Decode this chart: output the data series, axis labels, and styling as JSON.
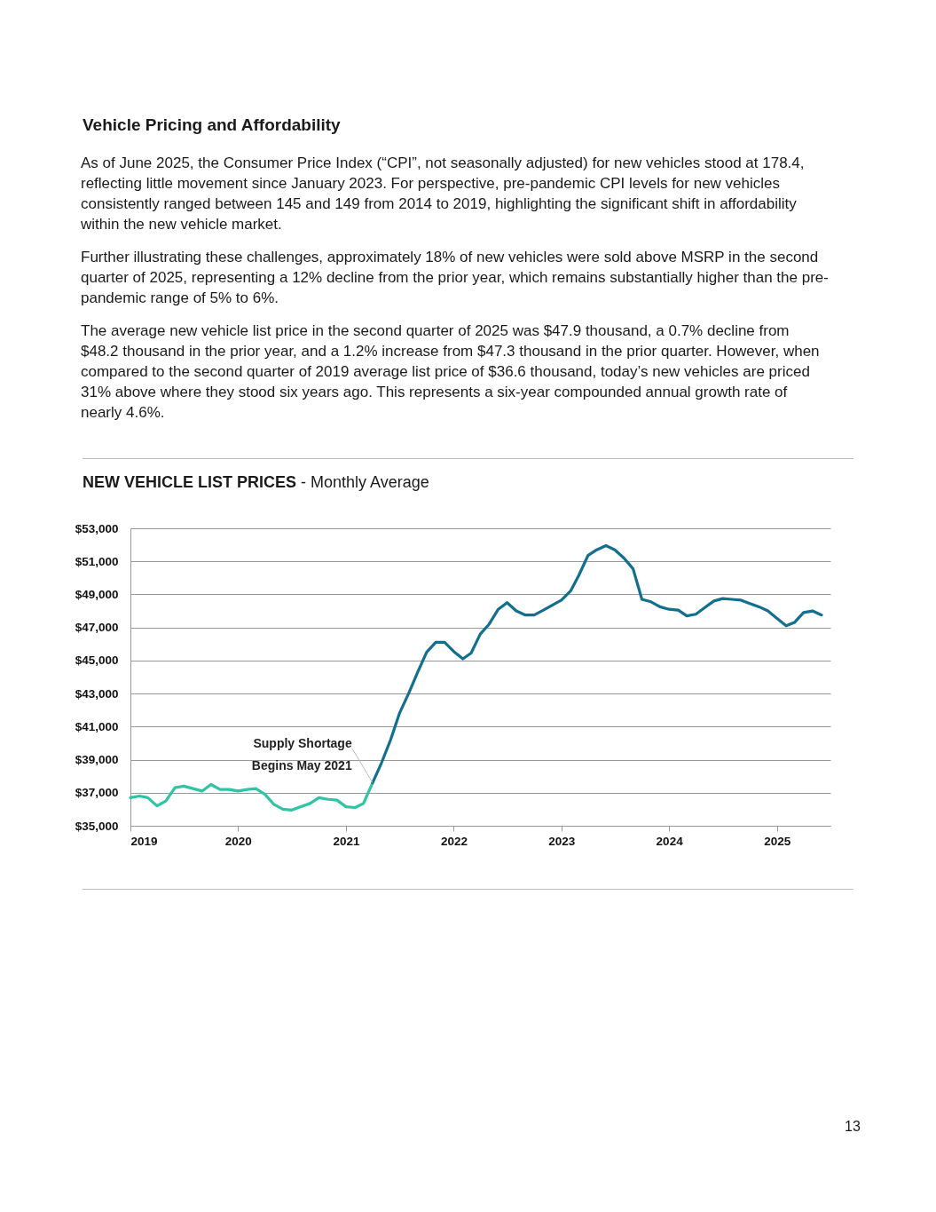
{
  "chart_data": {
    "type": "line",
    "title": "NEW VEHICLE LIST PRICES",
    "subtitle": "- Monthly Average",
    "annotations": [
      "Vehicle Pricing and Affordability",
      "As of June 2025, the Consumer Price Index (“CPI”, not seasonally adjusted) for new vehicles stood at 178.4, reflecting little movement since January 2023. For perspective, pre-pandemic CPI levels for new vehicles consistently ranged between 145 and 149 from 2014 to 2019, highlighting the significant shift in affordability within the new vehicle market.",
      "Further illustrating these challenges, approximately 18% of new vehicles were sold above MSRP in the second quarter of 2025, representing a 12% decline from the prior year, which remains substantially higher than the pre-pandemic range of 5% to 6%.",
      "The average new vehicle list price in the second quarter of 2025 was $47.9 thousand, a 0.7% decline from $48.2 thousand in the prior year, and a 1.2% increase from $47.3 thousand in the prior quarter. However, when compared to the second quarter of 2019 average list price of $36.6 thousand, today’s new vehicles are priced 31% above where they stood six years ago. This represents a six-year compounded annual growth rate of nearly 4.6%.",
      {
        "text": "Supply Shortage Begins May 2021",
        "x": "2021-04",
        "y": 37600
      },
      "13"
    ],
    "series": [
      {
        "color": "#2ec4a4",
        "x": [
          "2019-01",
          "2019-02",
          "2019-03",
          "2019-04",
          "2019-05",
          "2019-06",
          "2019-07",
          "2019-08",
          "2019-09",
          "2019-10",
          "2019-11",
          "2019-12",
          "2020-01",
          "2020-02",
          "2020-03",
          "2020-04",
          "2020-05",
          "2020-06",
          "2020-07",
          "2020-08",
          "2020-09",
          "2020-10",
          "2020-11",
          "2020-12",
          "2021-01",
          "2021-02",
          "2021-03",
          "2021-04"
        ],
        "values": [
          36700,
          36800,
          36700,
          36200,
          36500,
          37300,
          37400,
          37250,
          37100,
          37500,
          37200,
          37200,
          37100,
          37200,
          37250,
          36900,
          36300,
          36000,
          35950,
          36150,
          36350,
          36700,
          36600,
          36550,
          36150,
          36100,
          36350,
          37600
        ]
      },
      {
        "color": "#136f8e",
        "x": [
          "2021-04",
          "2021-05",
          "2021-06",
          "2021-07",
          "2021-08",
          "2021-09",
          "2021-10",
          "2021-11",
          "2021-12",
          "2022-01",
          "2022-02",
          "2022-03",
          "2022-04",
          "2022-05",
          "2022-06",
          "2022-07",
          "2022-08",
          "2022-09",
          "2022-10",
          "2022-11",
          "2022-12",
          "2023-01",
          "2023-02",
          "2023-03",
          "2023-04",
          "2023-05",
          "2023-06",
          "2023-07",
          "2023-08",
          "2023-09",
          "2023-10",
          "2023-11",
          "2023-12",
          "2024-01",
          "2024-02",
          "2024-03",
          "2024-04",
          "2024-05",
          "2024-06",
          "2024-07",
          "2024-08",
          "2024-09",
          "2024-10",
          "2024-11",
          "2024-12",
          "2025-01",
          "2025-02",
          "2025-03",
          "2025-04",
          "2025-05",
          "2025-06"
        ],
        "values": [
          37600,
          38800,
          40200,
          41800,
          43000,
          44300,
          45500,
          46100,
          46100,
          45550,
          45100,
          45450,
          46600,
          47200,
          48100,
          48500,
          48000,
          47750,
          47750,
          48050,
          48350,
          48650,
          49200,
          50150,
          51350,
          51700,
          51950,
          51700,
          51200,
          50550,
          48700,
          48550,
          48250,
          48100,
          48050,
          47700,
          47800,
          48200,
          48600,
          48750,
          48700,
          48650,
          48450,
          48250,
          48000,
          47550,
          47100,
          47300,
          47900,
          48000,
          47750
        ]
      }
    ],
    "xlim": [
      "2019",
      "2025-07"
    ],
    "xticks": [
      "2019",
      "2020",
      "2021",
      "2022",
      "2023",
      "2024",
      "2025"
    ],
    "ylim": [
      35000,
      53000
    ],
    "yticks": [
      {
        "value": 35000,
        "label": "$35,000"
      },
      {
        "value": 37000,
        "label": "$37,000"
      },
      {
        "value": 39000,
        "label": "$39,000"
      },
      {
        "value": 41000,
        "label": "$41,000"
      },
      {
        "value": 43000,
        "label": "$43,000"
      },
      {
        "value": 45000,
        "label": "$45,000"
      },
      {
        "value": 47000,
        "label": "$47,000"
      },
      {
        "value": 49000,
        "label": "$49,000"
      },
      {
        "value": 51000,
        "label": "$51,000"
      },
      {
        "value": 53000,
        "label": "$53,000"
      }
    ],
    "grid": "y",
    "legend": false,
    "marker": "none",
    "line_style": "solid"
  }
}
